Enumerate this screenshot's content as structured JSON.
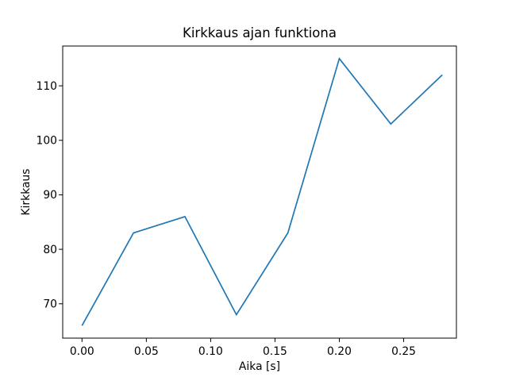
{
  "chart_data": {
    "type": "line",
    "title": "Kirkkaus ajan funktiona",
    "xlabel": "Aika [s]",
    "ylabel": "Kirkkaus",
    "x": [
      0.0,
      0.04,
      0.08,
      0.12,
      0.16,
      0.2,
      0.24,
      0.28
    ],
    "y": [
      66,
      83,
      86,
      68,
      83,
      115,
      103,
      112
    ],
    "series_name": "Kirkkaus",
    "xlim": [
      -0.015,
      0.291
    ],
    "ylim": [
      63.7,
      117.3
    ],
    "x_ticks": [
      0.0,
      0.05,
      0.1,
      0.15,
      0.2,
      0.25
    ],
    "x_tick_labels": [
      "0.00",
      "0.05",
      "0.10",
      "0.15",
      "0.20",
      "0.25"
    ],
    "y_ticks": [
      70,
      80,
      90,
      100,
      110
    ],
    "y_tick_labels": [
      "70",
      "80",
      "90",
      "100",
      "110"
    ],
    "line_color": "#1f77b4",
    "spine_color": "#000000",
    "background_color": "#ffffff",
    "grid": false,
    "legend": "none"
  }
}
